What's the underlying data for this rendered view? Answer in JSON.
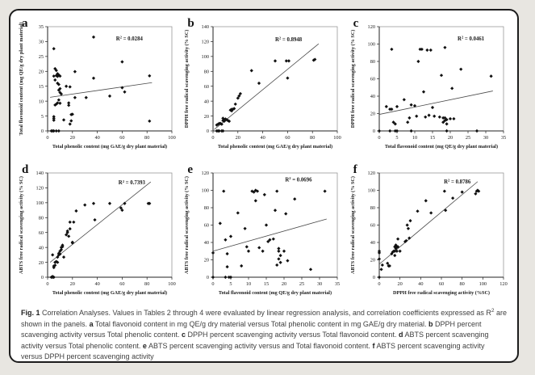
{
  "colors": {
    "page_background": "#e8e6e1",
    "card_background": "#ffffff",
    "card_border": "#1c1c1c",
    "plot_marker": "#111111",
    "trend_line": "#4a4a4a",
    "caption_text": "#3f3f3f"
  },
  "caption": {
    "segments": [
      {
        "text": "Fig. 1 ",
        "bold": true
      },
      {
        "text": "Correlation Analyses. Values in Tables 2 through 4 were evaluated by linear regression analysis, and correlation coefficients expressed as R"
      },
      {
        "text": "2",
        "sup": true
      },
      {
        "text": " are shown in the panels. "
      },
      {
        "text": "a",
        "bold": true
      },
      {
        "text": " Total flavonoid content in mg QE/g dry material versus Total phenolic content in mg GAE/g dry material. "
      },
      {
        "text": "b",
        "bold": true
      },
      {
        "text": " DPPH percent scavenging activity versus Total phenolic content. "
      },
      {
        "text": "c",
        "bold": true
      },
      {
        "text": " DPPH percent scavenging activity versus Total flavonoid content. "
      },
      {
        "text": "d",
        "bold": true
      },
      {
        "text": " ABTS percent scavenging activity versus Total phenolic content. "
      },
      {
        "text": "e",
        "bold": true
      },
      {
        "text": " ABTS percent scavenging activity versus and Total flavonoid content. "
      },
      {
        "text": "f",
        "bold": true
      },
      {
        "text": " ABTS percent scavenging activity versus DPPH percent scavenging activity"
      }
    ]
  },
  "chart_data": [
    {
      "type": "scatter",
      "letter": "a",
      "r2": "0.0284",
      "r2_pos": [
        0.55,
        0.13
      ],
      "xlabel": "Total phenolic content (mg GAE/g dry plant material)",
      "ylabel": "Total flavonoid content (mg QE/g dry plant material)",
      "xlim": [
        0,
        100
      ],
      "ylim": [
        0,
        35
      ],
      "xticks": [
        0,
        20,
        40,
        60,
        80,
        100
      ],
      "yticks": [
        0,
        5,
        10,
        15,
        20,
        25,
        30,
        35
      ],
      "trendline": [
        [
          2,
          11.3
        ],
        [
          84,
          16.2
        ]
      ],
      "points": [
        [
          3,
          0
        ],
        [
          4,
          0
        ],
        [
          5,
          0
        ],
        [
          7,
          0
        ],
        [
          9,
          0
        ],
        [
          18,
          2.3
        ],
        [
          82,
          3.3
        ],
        [
          5,
          3.6
        ],
        [
          5,
          4.2
        ],
        [
          5,
          4.8
        ],
        [
          13,
          3.7
        ],
        [
          19,
          3.4
        ],
        [
          20,
          5.6
        ],
        [
          19,
          5.5
        ],
        [
          6,
          8.7
        ],
        [
          7,
          9
        ],
        [
          8,
          9.4
        ],
        [
          10,
          9.3
        ],
        [
          17,
          8.6
        ],
        [
          17,
          9.4
        ],
        [
          9,
          10.4
        ],
        [
          22,
          11.2
        ],
        [
          31,
          11.2
        ],
        [
          50,
          11.7
        ],
        [
          10,
          12.9
        ],
        [
          11,
          12.4
        ],
        [
          62,
          13.1
        ],
        [
          60,
          14.5
        ],
        [
          9,
          13.7
        ],
        [
          10,
          14.2
        ],
        [
          15,
          15
        ],
        [
          18,
          14.8
        ],
        [
          8,
          16
        ],
        [
          9,
          15.6
        ],
        [
          6,
          17.1
        ],
        [
          37,
          17.7
        ],
        [
          82,
          18.5
        ],
        [
          5,
          18.4
        ],
        [
          7,
          18.6
        ],
        [
          8,
          18.3
        ],
        [
          9,
          18.8
        ],
        [
          10,
          18.4
        ],
        [
          8,
          19.2
        ],
        [
          7,
          20.3
        ],
        [
          6,
          20.9
        ],
        [
          22,
          19.9
        ],
        [
          5,
          27.6
        ],
        [
          37,
          31.5
        ],
        [
          60,
          23.2
        ]
      ]
    },
    {
      "type": "scatter",
      "letter": "b",
      "r2": "0.8948",
      "r2_pos": [
        0.5,
        0.14
      ],
      "xlabel": "Total phenolic content (mg GAE/g dry plant material)",
      "ylabel": "DPPH free radical scavenging activity (% SC)",
      "xlim": [
        0,
        100
      ],
      "ylim": [
        0,
        140
      ],
      "xticks": [
        0,
        20,
        40,
        60,
        80,
        100
      ],
      "yticks": [
        0,
        20,
        40,
        60,
        80,
        100,
        120,
        140
      ],
      "trendline": [
        [
          1,
          2
        ],
        [
          85,
          117
        ]
      ],
      "points": [
        [
          3,
          0
        ],
        [
          4,
          0
        ],
        [
          5,
          0
        ],
        [
          7,
          0
        ],
        [
          8,
          0
        ],
        [
          3,
          8
        ],
        [
          4,
          9
        ],
        [
          5,
          10
        ],
        [
          6,
          10
        ],
        [
          7,
          9
        ],
        [
          8,
          14
        ],
        [
          9,
          13
        ],
        [
          9,
          15
        ],
        [
          10,
          15
        ],
        [
          10,
          16
        ],
        [
          11,
          15
        ],
        [
          12,
          14
        ],
        [
          13,
          13
        ],
        [
          8,
          17
        ],
        [
          14,
          28
        ],
        [
          15,
          29
        ],
        [
          16,
          29
        ],
        [
          17,
          30
        ],
        [
          15,
          27
        ],
        [
          18,
          36
        ],
        [
          20,
          44
        ],
        [
          21,
          47
        ],
        [
          22,
          50
        ],
        [
          31,
          81
        ],
        [
          37,
          64
        ],
        [
          50,
          94
        ],
        [
          59,
          94
        ],
        [
          61,
          94
        ],
        [
          60,
          71
        ],
        [
          81,
          95
        ],
        [
          82,
          96
        ]
      ]
    },
    {
      "type": "scatter",
      "letter": "c",
      "r2": "0.0461",
      "r2_pos": [
        0.63,
        0.13
      ],
      "xlabel": "Total flavonoid content (mg QE/g dry plant material)",
      "ylabel": "DPPH free radical scavenging activity (% SC)",
      "xlim": [
        0,
        35
      ],
      "ylim": [
        0,
        120
      ],
      "xticks": [
        0,
        5,
        10,
        15,
        20,
        25,
        30,
        35
      ],
      "yticks": [
        0,
        20,
        40,
        60,
        80,
        100,
        120
      ],
      "trendline": [
        [
          0,
          19
        ],
        [
          32,
          46
        ]
      ],
      "points": [
        [
          0,
          0
        ],
        [
          3,
          0
        ],
        [
          4.5,
          0
        ],
        [
          5,
          0
        ],
        [
          9,
          0
        ],
        [
          19,
          0
        ],
        [
          27.5,
          0
        ],
        [
          3.5,
          94
        ],
        [
          2,
          28
        ],
        [
          3,
          25
        ],
        [
          3.5,
          25
        ],
        [
          4,
          10
        ],
        [
          4.5,
          8
        ],
        [
          5,
          28
        ],
        [
          7,
          36
        ],
        [
          8,
          10
        ],
        [
          8.5,
          15
        ],
        [
          9,
          30
        ],
        [
          10,
          29
        ],
        [
          10.5,
          17
        ],
        [
          11,
          80
        ],
        [
          11.5,
          94
        ],
        [
          12,
          94
        ],
        [
          12.5,
          45
        ],
        [
          13,
          16
        ],
        [
          13.5,
          93
        ],
        [
          14.5,
          93
        ],
        [
          14,
          18
        ],
        [
          15,
          27
        ],
        [
          15.5,
          17
        ],
        [
          17.5,
          64
        ],
        [
          17,
          16
        ],
        [
          18,
          15
        ],
        [
          18,
          10
        ],
        [
          18.5,
          96
        ],
        [
          18.5,
          15
        ],
        [
          18.5,
          12
        ],
        [
          19,
          8
        ],
        [
          19,
          13
        ],
        [
          20,
          14
        ],
        [
          20.5,
          49
        ],
        [
          21,
          14
        ],
        [
          23,
          71
        ],
        [
          31.5,
          63
        ]
      ]
    },
    {
      "type": "scatter",
      "letter": "d",
      "r2": "0.7393",
      "r2_pos": [
        0.57,
        0.11
      ],
      "xlabel": "Total phenolic content (mg GAE/g dry plant material)",
      "ylabel": "ABTS free radical scavenging activity (% SC)",
      "xlim": [
        0,
        100
      ],
      "ylim": [
        0,
        140
      ],
      "xticks": [
        0,
        20,
        40,
        60,
        80,
        100
      ],
      "yticks": [
        0,
        20,
        40,
        60,
        80,
        100,
        120,
        140
      ],
      "trendline": [
        [
          2,
          20
        ],
        [
          83,
          128
        ]
      ],
      "points": [
        [
          3,
          0
        ],
        [
          4,
          0
        ],
        [
          5,
          0
        ],
        [
          4,
          1
        ],
        [
          5,
          13
        ],
        [
          5,
          15
        ],
        [
          6,
          16
        ],
        [
          4,
          30
        ],
        [
          6,
          20
        ],
        [
          7,
          21
        ],
        [
          8,
          20
        ],
        [
          8,
          27
        ],
        [
          9,
          30
        ],
        [
          9,
          32
        ],
        [
          10,
          31
        ],
        [
          10,
          35
        ],
        [
          11,
          37
        ],
        [
          11,
          40
        ],
        [
          12,
          41
        ],
        [
          12,
          43
        ],
        [
          13,
          27
        ],
        [
          15,
          57
        ],
        [
          16,
          60
        ],
        [
          16,
          62
        ],
        [
          17,
          55
        ],
        [
          18,
          65
        ],
        [
          18,
          74
        ],
        [
          20,
          46
        ],
        [
          20,
          47
        ],
        [
          21,
          74
        ],
        [
          23,
          89
        ],
        [
          30,
          97
        ],
        [
          37,
          99
        ],
        [
          38,
          77
        ],
        [
          50,
          99
        ],
        [
          59,
          93
        ],
        [
          60,
          90
        ],
        [
          62,
          99
        ],
        [
          81,
          99
        ],
        [
          82,
          99
        ]
      ]
    },
    {
      "type": "scatter",
      "letter": "e",
      "r2": "0.0696",
      "r2_pos": [
        0.58,
        0.08
      ],
      "xlabel": "Total flavonoid content (mg QE/g dry plant material)",
      "ylabel": "ABTS free radical scavenging activity (% SC)",
      "xlim": [
        0,
        35
      ],
      "ylim": [
        0,
        120
      ],
      "xticks": [
        0,
        5,
        10,
        15,
        20,
        25,
        30,
        35
      ],
      "yticks": [
        0,
        20,
        40,
        60,
        80,
        100,
        120
      ],
      "trendline": [
        [
          0,
          30
        ],
        [
          32,
          67
        ]
      ],
      "points": [
        [
          0,
          0
        ],
        [
          0,
          28
        ],
        [
          2,
          62
        ],
        [
          3,
          99
        ],
        [
          3.5,
          0
        ],
        [
          3.5,
          43
        ],
        [
          4,
          27
        ],
        [
          4,
          12
        ],
        [
          4.5,
          0
        ],
        [
          5,
          47
        ],
        [
          5,
          0
        ],
        [
          7,
          74
        ],
        [
          8,
          13
        ],
        [
          9,
          56
        ],
        [
          9.5,
          35
        ],
        [
          10,
          30
        ],
        [
          11,
          99
        ],
        [
          11.5,
          98
        ],
        [
          12,
          100
        ],
        [
          12,
          88
        ],
        [
          12.5,
          99
        ],
        [
          13,
          34
        ],
        [
          14,
          30
        ],
        [
          14.5,
          95
        ],
        [
          15,
          60
        ],
        [
          15.5,
          41
        ],
        [
          16,
          43
        ],
        [
          17,
          44
        ],
        [
          17.5,
          77
        ],
        [
          18,
          14
        ],
        [
          18,
          99
        ],
        [
          18.5,
          33
        ],
        [
          18.5,
          30
        ],
        [
          18.5,
          21
        ],
        [
          19,
          17
        ],
        [
          19,
          25
        ],
        [
          20,
          30
        ],
        [
          20.5,
          73
        ],
        [
          21,
          19
        ],
        [
          23,
          90
        ],
        [
          27.5,
          9
        ],
        [
          31.5,
          99
        ]
      ]
    },
    {
      "type": "scatter",
      "letter": "f",
      "r2": "0.8786",
      "r2_pos": [
        0.52,
        0.1
      ],
      "xlabel": "DPPH free radical scavenging activity (%SC)",
      "ylabel": "ABTS free radical scavenging activity (% SC)",
      "xlim": [
        0,
        120
      ],
      "ylim": [
        0,
        120
      ],
      "xticks": [
        0,
        20,
        40,
        60,
        80,
        100,
        120
      ],
      "yticks": [
        0,
        20,
        40,
        60,
        80,
        100,
        120
      ],
      "trendline": [
        [
          0,
          15
        ],
        [
          95,
          110
        ]
      ],
      "points": [
        [
          0,
          0
        ],
        [
          0,
          21
        ],
        [
          0,
          28
        ],
        [
          0,
          30
        ],
        [
          2,
          9
        ],
        [
          3,
          14
        ],
        [
          8,
          16
        ],
        [
          9,
          13
        ],
        [
          10,
          13
        ],
        [
          12,
          27
        ],
        [
          13,
          29
        ],
        [
          14,
          30
        ],
        [
          15,
          25
        ],
        [
          15,
          30
        ],
        [
          15,
          35
        ],
        [
          16,
          33
        ],
        [
          16,
          37
        ],
        [
          17,
          35
        ],
        [
          17,
          30
        ],
        [
          18,
          44
        ],
        [
          18,
          35
        ],
        [
          20,
          30
        ],
        [
          25,
          41
        ],
        [
          26,
          42
        ],
        [
          27,
          60
        ],
        [
          28,
          56
        ],
        [
          29,
          45
        ],
        [
          30,
          65
        ],
        [
          37,
          76
        ],
        [
          45,
          88
        ],
        [
          50,
          74
        ],
        [
          63,
          99
        ],
        [
          64,
          77
        ],
        [
          71,
          91
        ],
        [
          80,
          98
        ],
        [
          93,
          96
        ],
        [
          94,
          99
        ],
        [
          95,
          100
        ],
        [
          96,
          99
        ]
      ]
    }
  ]
}
